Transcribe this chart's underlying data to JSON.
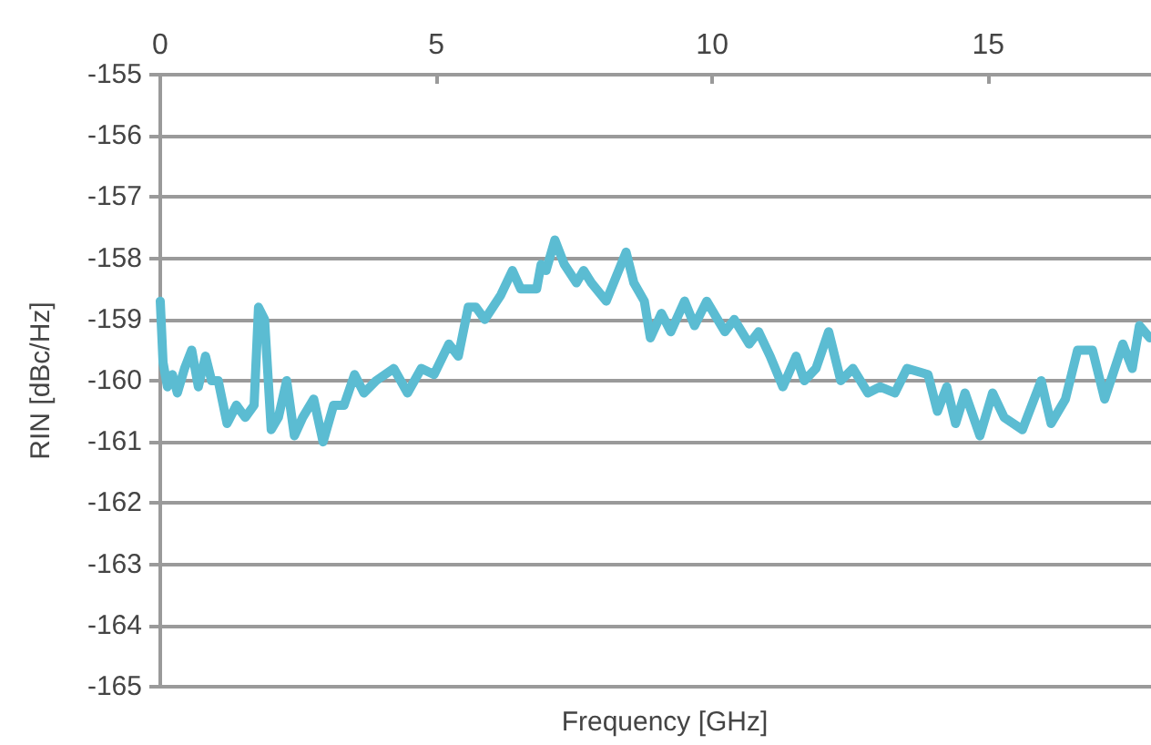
{
  "chart_data": {
    "type": "line",
    "xlabel": "Frequency [GHz]",
    "ylabel": "RIN [dBc/Hz]",
    "x": [
      0,
      0.05,
      0.13,
      0.22,
      0.31,
      0.44,
      0.57,
      0.69,
      0.82,
      0.93,
      1.05,
      1.21,
      1.38,
      1.54,
      1.7,
      1.78,
      1.89,
      2.01,
      2.14,
      2.29,
      2.43,
      2.58,
      2.78,
      2.95,
      3.14,
      3.33,
      3.52,
      3.69,
      3.91,
      4.23,
      4.48,
      4.73,
      4.96,
      5.23,
      5.4,
      5.58,
      5.72,
      5.88,
      6.17,
      6.38,
      6.53,
      6.82,
      6.9,
      6.99,
      7.15,
      7.32,
      7.54,
      7.67,
      7.81,
      8.08,
      8.44,
      8.58,
      8.77,
      8.88,
      9.08,
      9.25,
      9.5,
      9.68,
      9.9,
      10.23,
      10.4,
      10.67,
      10.84,
      11.05,
      11.28,
      11.52,
      11.67,
      11.88,
      12.11,
      12.33,
      12.55,
      12.82,
      13.04,
      13.31,
      13.53,
      13.91,
      14.08,
      14.25,
      14.41,
      14.58,
      14.85,
      15.08,
      15.29,
      15.62,
      15.96,
      16.14,
      16.4,
      16.62,
      16.89,
      17.11,
      17.44,
      17.61,
      17.74,
      17.93
    ],
    "series": [
      {
        "color": "#5bbcd2",
        "values": [
          -158.7,
          -159.7,
          -160.1,
          -159.9,
          -160.2,
          -159.8,
          -159.5,
          -160.1,
          -159.6,
          -160.0,
          -160.0,
          -160.7,
          -160.4,
          -160.6,
          -160.4,
          -158.8,
          -159.0,
          -160.8,
          -160.6,
          -160.0,
          -160.9,
          -160.6,
          -160.3,
          -161.0,
          -160.4,
          -160.4,
          -159.9,
          -160.2,
          -160.0,
          -159.8,
          -160.2,
          -159.8,
          -159.9,
          -159.4,
          -159.6,
          -158.8,
          -158.8,
          -159.0,
          -158.6,
          -158.2,
          -158.5,
          -158.5,
          -158.1,
          -158.2,
          -157.7,
          -158.1,
          -158.4,
          -158.2,
          -158.4,
          -158.7,
          -157.9,
          -158.4,
          -158.7,
          -159.3,
          -158.9,
          -159.2,
          -158.7,
          -159.1,
          -158.7,
          -159.2,
          -159.0,
          -159.4,
          -159.2,
          -159.6,
          -160.1,
          -159.6,
          -160.0,
          -159.8,
          -159.2,
          -160.0,
          -159.8,
          -160.2,
          -160.1,
          -160.2,
          -159.8,
          -159.9,
          -160.5,
          -160.1,
          -160.7,
          -160.2,
          -160.9,
          -160.2,
          -160.6,
          -160.8,
          -160.0,
          -160.7,
          -160.3,
          -159.5,
          -159.5,
          -160.3,
          -159.4,
          -159.8,
          -159.1,
          -159.3
        ]
      }
    ],
    "xlim": [
      0,
      17.95
    ],
    "xticks": [
      0,
      5,
      10,
      15
    ],
    "ylim": [
      -165,
      -155
    ],
    "yticks": [
      -165,
      -164,
      -163,
      -162,
      -161,
      -160,
      -159,
      -158,
      -157,
      -156,
      -155
    ],
    "grid": "y",
    "marker": "none",
    "line_style": "solid"
  }
}
